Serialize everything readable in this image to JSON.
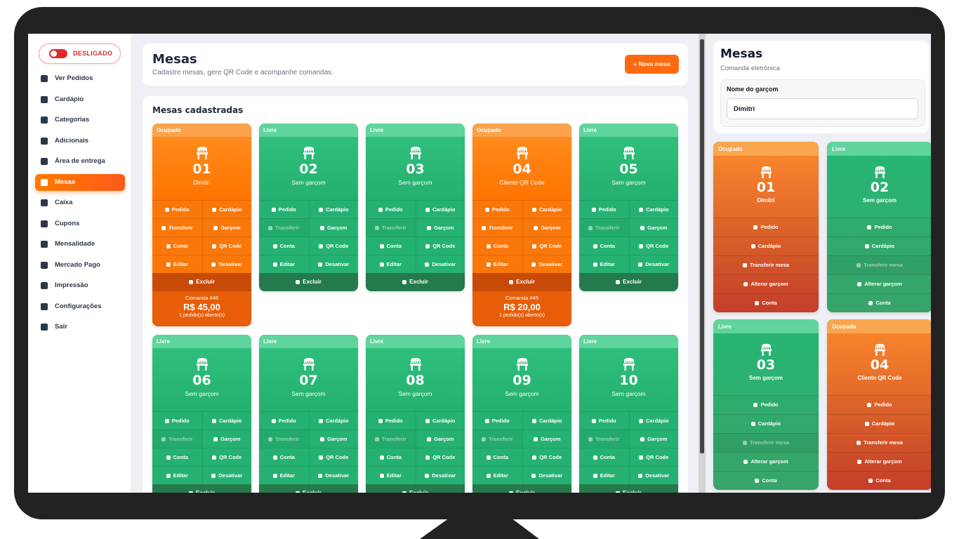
{
  "sidebar": {
    "toggle": "DESLIGADO",
    "menu": [
      "Ver Pedidos",
      "Cardápio",
      "Categorias",
      "Adicionais",
      "Área de entrega",
      "Mesas",
      "Caixa",
      "Cupons",
      "Mensalidade",
      "Mercado Pago",
      "Impressão",
      "Configurações",
      "Sair"
    ],
    "active": 5
  },
  "header": {
    "title": "Mesas",
    "subtitle": "Cadastre mesas, gere QR Code e acompanhe comandas.",
    "button": "+ Nova mesa"
  },
  "section_title": "Mesas cadastradas",
  "card_actions": [
    "Pedido",
    "Cardápio",
    "Transferir",
    "Garçom",
    "Conta",
    "QR Code",
    "Editar",
    "Desativar"
  ],
  "delete_label": "Excluir",
  "tables": [
    {
      "status": "Ocupada",
      "occupied": true,
      "number": "01",
      "waiter": "Dimitri",
      "comanda": "Comanda #46",
      "total": "R$ 45,00",
      "orders": "1 pedido(s) aberto(s)"
    },
    {
      "status": "Livre",
      "occupied": false,
      "number": "02",
      "waiter": "Sem garçom"
    },
    {
      "status": "Livre",
      "occupied": false,
      "number": "03",
      "waiter": "Sem garçom"
    },
    {
      "status": "Ocupada",
      "occupied": true,
      "number": "04",
      "waiter": "Cliente QR Code",
      "comanda": "Comanda #45",
      "total": "R$ 20,00",
      "orders": "1 pedido(s) aberto(s)"
    },
    {
      "status": "Livre",
      "occupied": false,
      "number": "05",
      "waiter": "Sem garçom"
    },
    {
      "status": "Livre",
      "occupied": false,
      "number": "06",
      "waiter": "Sem garçom"
    },
    {
      "status": "Livre",
      "occupied": false,
      "number": "07",
      "waiter": "Sem garçom"
    },
    {
      "status": "Livre",
      "occupied": false,
      "number": "08",
      "waiter": "Sem garçom"
    },
    {
      "status": "Livre",
      "occupied": false,
      "number": "09",
      "waiter": "Sem garçom"
    },
    {
      "status": "Livre",
      "occupied": false,
      "number": "10",
      "waiter": "Sem garçom"
    }
  ],
  "mobile": {
    "title": "Mesas",
    "subtitle": "Comanda eletrônica",
    "field_label": "Nome do garçom",
    "field_value": "Dimitri",
    "actions": [
      "Pedido",
      "Cardápio",
      "Transferir mesa",
      "Alterar garçom",
      "Conta"
    ],
    "tables": [
      {
        "status": "Ocupada",
        "occupied": true,
        "number": "01",
        "waiter": "Dimitri"
      },
      {
        "status": "Livre",
        "occupied": false,
        "number": "02",
        "waiter": "Sem garçom"
      },
      {
        "status": "Livre",
        "occupied": false,
        "number": "03",
        "waiter": "Sem garçom"
      },
      {
        "status": "Ocupada",
        "occupied": true,
        "number": "04",
        "waiter": "Cliente QR Code"
      }
    ]
  }
}
